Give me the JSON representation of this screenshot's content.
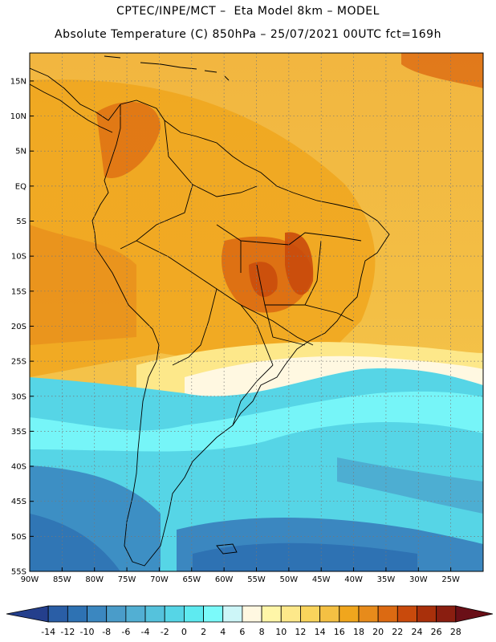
{
  "header": {
    "line1": "CPTEC/INPE/MCT –  Eta Model 8km – MODEL",
    "line2": "Absolute Temperature (C) 850hPa – 25/07/2021 00UTC fct=169h"
  },
  "map": {
    "lat_labels": [
      "15N",
      "10N",
      "5N",
      "EQ",
      "5S",
      "10S",
      "15S",
      "20S",
      "25S",
      "30S",
      "35S",
      "40S",
      "45S",
      "50S",
      "55S"
    ],
    "lon_labels": [
      "90W",
      "85W",
      "80W",
      "75W",
      "70W",
      "65W",
      "60W",
      "55W",
      "50W",
      "45W",
      "40W",
      "35W",
      "30W",
      "25W"
    ],
    "extent": {
      "lon_min": -90,
      "lon_max": -20,
      "lat_min": -55,
      "lat_max": 19
    }
  },
  "colorbar": {
    "labels": [
      "-14",
      "-12",
      "-10",
      "-8",
      "-6",
      "-4",
      "-2",
      "0",
      "2",
      "4",
      "6",
      "8",
      "10",
      "12",
      "14",
      "16",
      "18",
      "20",
      "22",
      "24",
      "26",
      "28"
    ],
    "colors": [
      "#243f8c",
      "#2a5ea6",
      "#2e72b3",
      "#3b87c0",
      "#4a9cc9",
      "#52afd3",
      "#55c2dc",
      "#56d5e6",
      "#5eeaf0",
      "#7bfafa",
      "#cdf6f8",
      "#fff8e1",
      "#fff6a8",
      "#fde88a",
      "#f9d45c",
      "#f4c043",
      "#f0a61d",
      "#e78b1b",
      "#dc6a12",
      "#c94a0c",
      "#a9300b",
      "#8a1e10",
      "#6a0f17"
    ]
  }
}
